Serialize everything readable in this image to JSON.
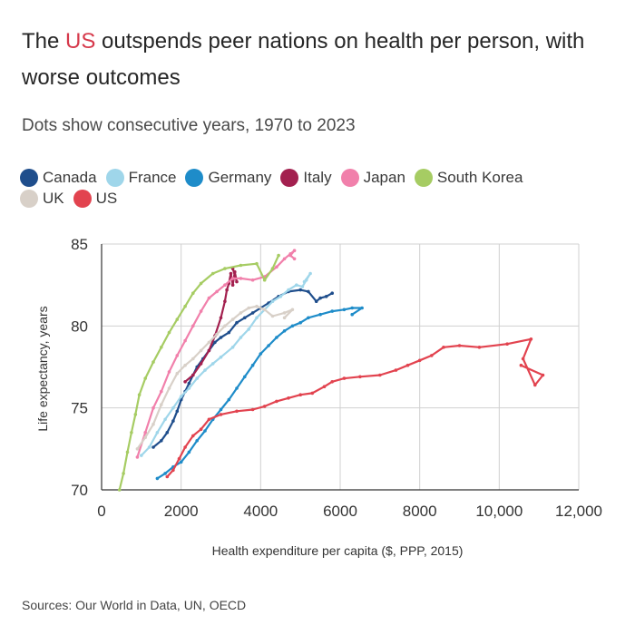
{
  "header": {
    "title_pre": "The ",
    "title_highlight": "US",
    "title_post": " outspends peer nations on health per person, with worse outcomes",
    "subtitle": "Dots show consecutive years, 1970 to 2023"
  },
  "colors": {
    "highlight": "#d6394b",
    "grid": "#d0d0d0",
    "axis": "#333333"
  },
  "chart_data": {
    "type": "scatter",
    "mode": "connected",
    "xlabel": "Health expenditure per capita ($, PPP, 2015)",
    "ylabel": "Life expectancy, years",
    "xlim": [
      0,
      12000
    ],
    "ylim": [
      70,
      85
    ],
    "xticks": [
      0,
      2000,
      4000,
      6000,
      8000,
      10000,
      12000
    ],
    "xtick_labels": [
      "0",
      "2000",
      "4000",
      "6000",
      "8000",
      "10,000",
      "12,000"
    ],
    "yticks": [
      70,
      75,
      80,
      85
    ],
    "ytick_labels": [
      "70",
      "75",
      "80",
      "85"
    ],
    "grid": true,
    "series": [
      {
        "name": "Canada",
        "color": "#1f4e8c",
        "points": [
          [
            1300,
            72.6
          ],
          [
            1500,
            73
          ],
          [
            1650,
            73.5
          ],
          [
            1800,
            74.2
          ],
          [
            1900,
            74.8
          ],
          [
            2000,
            75.5
          ],
          [
            2100,
            76
          ],
          [
            2200,
            76.5
          ],
          [
            2300,
            77
          ],
          [
            2400,
            77.5
          ],
          [
            2550,
            78
          ],
          [
            2700,
            78.5
          ],
          [
            2850,
            79
          ],
          [
            3000,
            79.3
          ],
          [
            3200,
            79.6
          ],
          [
            3400,
            80.2
          ],
          [
            3600,
            80.5
          ],
          [
            3800,
            80.8
          ],
          [
            4000,
            81.1
          ],
          [
            4200,
            81.4
          ],
          [
            4450,
            81.8
          ],
          [
            4700,
            82.1
          ],
          [
            5000,
            82.2
          ],
          [
            5200,
            82.1
          ],
          [
            5400,
            81.5
          ],
          [
            5500,
            81.7
          ],
          [
            5650,
            81.8
          ],
          [
            5800,
            82
          ]
        ]
      },
      {
        "name": "France",
        "color": "#9fd6ea",
        "points": [
          [
            1000,
            72.1
          ],
          [
            1200,
            72.6
          ],
          [
            1400,
            73.5
          ],
          [
            1600,
            74.3
          ],
          [
            1800,
            75
          ],
          [
            2000,
            75.7
          ],
          [
            2200,
            76.2
          ],
          [
            2400,
            76.8
          ],
          [
            2600,
            77.3
          ],
          [
            2800,
            77.7
          ],
          [
            3000,
            78.1
          ],
          [
            3300,
            78.7
          ],
          [
            3500,
            79.3
          ],
          [
            3700,
            79.8
          ],
          [
            3900,
            80.5
          ],
          [
            4100,
            81
          ],
          [
            4300,
            81.5
          ],
          [
            4500,
            81.8
          ],
          [
            4700,
            82.2
          ],
          [
            4900,
            82.5
          ],
          [
            5050,
            82.4
          ],
          [
            5150,
            82.8
          ],
          [
            5250,
            83.2
          ],
          [
            5100,
            82.7
          ]
        ]
      },
      {
        "name": "Germany",
        "color": "#1e8cc9",
        "points": [
          [
            1400,
            70.7
          ],
          [
            1600,
            71
          ],
          [
            1800,
            71.4
          ],
          [
            2000,
            71.7
          ],
          [
            2200,
            72.3
          ],
          [
            2400,
            73
          ],
          [
            2600,
            73.6
          ],
          [
            2800,
            74.3
          ],
          [
            3000,
            74.9
          ],
          [
            3200,
            75.5
          ],
          [
            3400,
            76.2
          ],
          [
            3600,
            76.9
          ],
          [
            3800,
            77.6
          ],
          [
            4000,
            78.3
          ],
          [
            4200,
            78.8
          ],
          [
            4400,
            79.3
          ],
          [
            4600,
            79.7
          ],
          [
            4800,
            80
          ],
          [
            5000,
            80.2
          ],
          [
            5200,
            80.5
          ],
          [
            5500,
            80.7
          ],
          [
            5800,
            80.9
          ],
          [
            6100,
            81
          ],
          [
            6300,
            81.1
          ],
          [
            6550,
            81.1
          ],
          [
            6300,
            80.7
          ]
        ]
      },
      {
        "name": "Italy",
        "color": "#a3204f",
        "points": [
          [
            2100,
            76.6
          ],
          [
            2300,
            77
          ],
          [
            2500,
            77.7
          ],
          [
            2700,
            78.5
          ],
          [
            2850,
            79.4
          ],
          [
            3000,
            80.5
          ],
          [
            3100,
            81.5
          ],
          [
            3150,
            82.2
          ],
          [
            3200,
            82.6
          ],
          [
            3250,
            83.2
          ],
          [
            3300,
            82.5
          ],
          [
            3350,
            83.3
          ],
          [
            3400,
            82.7
          ],
          [
            3300,
            83.5
          ]
        ]
      },
      {
        "name": "Japan",
        "color": "#f180ab",
        "points": [
          [
            900,
            72
          ],
          [
            1100,
            73.5
          ],
          [
            1300,
            75
          ],
          [
            1500,
            76
          ],
          [
            1700,
            77.2
          ],
          [
            1900,
            78.2
          ],
          [
            2100,
            79.1
          ],
          [
            2300,
            80
          ],
          [
            2500,
            80.9
          ],
          [
            2700,
            81.7
          ],
          [
            2900,
            82.1
          ],
          [
            3100,
            82.5
          ],
          [
            3300,
            82.9
          ],
          [
            3500,
            82.9
          ],
          [
            3800,
            82.8
          ],
          [
            4100,
            83
          ],
          [
            4400,
            83.6
          ],
          [
            4600,
            84.1
          ],
          [
            4750,
            84.4
          ],
          [
            4850,
            84.6
          ],
          [
            4750,
            84.3
          ],
          [
            4850,
            84.1
          ]
        ]
      },
      {
        "name": "South Korea",
        "color": "#a6cc63",
        "points": [
          [
            450,
            70
          ],
          [
            550,
            71
          ],
          [
            650,
            72.3
          ],
          [
            750,
            73.5
          ],
          [
            850,
            74.6
          ],
          [
            950,
            75.8
          ],
          [
            1100,
            76.8
          ],
          [
            1300,
            77.8
          ],
          [
            1500,
            78.7
          ],
          [
            1700,
            79.6
          ],
          [
            1900,
            80.4
          ],
          [
            2100,
            81.2
          ],
          [
            2300,
            82
          ],
          [
            2500,
            82.6
          ],
          [
            2800,
            83.2
          ],
          [
            3100,
            83.5
          ],
          [
            3500,
            83.7
          ],
          [
            3900,
            83.8
          ],
          [
            4100,
            82.8
          ],
          [
            4300,
            83.5
          ],
          [
            4450,
            84.3
          ]
        ]
      },
      {
        "name": "UK",
        "color": "#d8d0c8",
        "points": [
          [
            900,
            72.5
          ],
          [
            1100,
            73.2
          ],
          [
            1300,
            74
          ],
          [
            1500,
            75.2
          ],
          [
            1700,
            76.2
          ],
          [
            1900,
            77.1
          ],
          [
            2100,
            77.6
          ],
          [
            2300,
            78
          ],
          [
            2500,
            78.5
          ],
          [
            2700,
            79
          ],
          [
            2900,
            79.5
          ],
          [
            3100,
            80
          ],
          [
            3300,
            80.4
          ],
          [
            3500,
            80.8
          ],
          [
            3700,
            81.1
          ],
          [
            3900,
            81.2
          ],
          [
            4100,
            81
          ],
          [
            4300,
            80.6
          ],
          [
            4600,
            80.8
          ],
          [
            4800,
            81
          ],
          [
            4600,
            80.5
          ]
        ]
      },
      {
        "name": "US",
        "color": "#e2434f",
        "points": [
          [
            1650,
            70.8
          ],
          [
            1800,
            71.2
          ],
          [
            1950,
            71.9
          ],
          [
            2100,
            72.6
          ],
          [
            2300,
            73.3
          ],
          [
            2500,
            73.7
          ],
          [
            2700,
            74.3
          ],
          [
            3000,
            74.6
          ],
          [
            3400,
            74.8
          ],
          [
            3800,
            74.9
          ],
          [
            4100,
            75.1
          ],
          [
            4400,
            75.4
          ],
          [
            4700,
            75.6
          ],
          [
            5000,
            75.8
          ],
          [
            5300,
            75.9
          ],
          [
            5600,
            76.3
          ],
          [
            5800,
            76.6
          ],
          [
            6100,
            76.8
          ],
          [
            6500,
            76.9
          ],
          [
            7000,
            77
          ],
          [
            7400,
            77.3
          ],
          [
            7700,
            77.6
          ],
          [
            8000,
            77.9
          ],
          [
            8300,
            78.2
          ],
          [
            8600,
            78.7
          ],
          [
            9000,
            78.8
          ],
          [
            9500,
            78.7
          ],
          [
            10200,
            78.9
          ],
          [
            10800,
            79.2
          ],
          [
            10600,
            78
          ],
          [
            10900,
            76.4
          ],
          [
            11100,
            77
          ],
          [
            10550,
            77.6
          ]
        ]
      }
    ]
  },
  "footer": {
    "source": "Sources: Our World in Data, UN, OECD"
  }
}
